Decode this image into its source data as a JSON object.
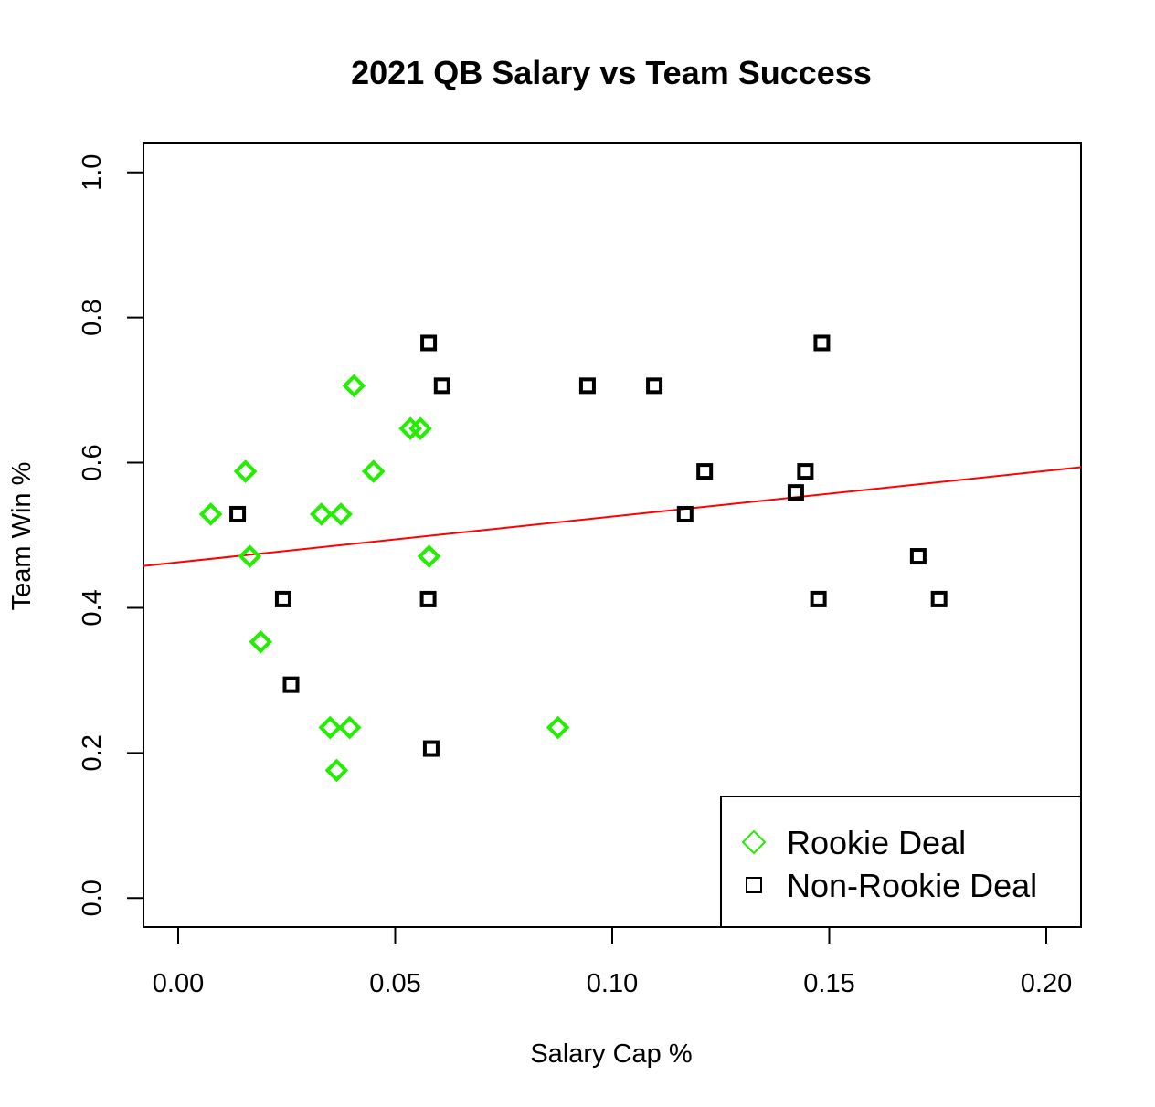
{
  "chart_data": {
    "type": "scatter",
    "title": "2021 QB Salary vs Team Success",
    "xlabel": "Salary Cap %",
    "ylabel": "Team Win %",
    "xlim": [
      -0.008,
      0.208
    ],
    "ylim": [
      -0.04,
      1.04
    ],
    "xticks": [
      0.0,
      0.05,
      0.1,
      0.15,
      0.2
    ],
    "xtick_labels": [
      "0.00",
      "0.05",
      "0.10",
      "0.15",
      "0.20"
    ],
    "yticks": [
      0.0,
      0.2,
      0.4,
      0.6,
      0.8,
      1.0
    ],
    "ytick_labels": [
      "0.0",
      "0.2",
      "0.4",
      "0.6",
      "0.8",
      "1.0"
    ],
    "grid": false,
    "legend_position": "bottom-right",
    "series": [
      {
        "name": "Rookie Deal",
        "color": "#22ee00",
        "marker": "diamond",
        "points": [
          [
            0.0075,
            0.529
          ],
          [
            0.0155,
            0.588
          ],
          [
            0.0165,
            0.471
          ],
          [
            0.019,
            0.353
          ],
          [
            0.033,
            0.529
          ],
          [
            0.0375,
            0.529
          ],
          [
            0.0405,
            0.706
          ],
          [
            0.045,
            0.588
          ],
          [
            0.0535,
            0.647
          ],
          [
            0.0558,
            0.647
          ],
          [
            0.0578,
            0.471
          ],
          [
            0.035,
            0.235
          ],
          [
            0.0395,
            0.235
          ],
          [
            0.0365,
            0.176
          ],
          [
            0.0875,
            0.235
          ]
        ]
      },
      {
        "name": "Non-Rookie Deal",
        "color": "#000000",
        "marker": "square",
        "points": [
          [
            0.0137,
            0.529
          ],
          [
            0.0242,
            0.412
          ],
          [
            0.026,
            0.294
          ],
          [
            0.0577,
            0.765
          ],
          [
            0.0608,
            0.706
          ],
          [
            0.0576,
            0.412
          ],
          [
            0.0583,
            0.206
          ],
          [
            0.0943,
            0.706
          ],
          [
            0.1097,
            0.706
          ],
          [
            0.1213,
            0.588
          ],
          [
            0.1168,
            0.529
          ],
          [
            0.1423,
            0.559
          ],
          [
            0.1445,
            0.588
          ],
          [
            0.1483,
            0.765
          ],
          [
            0.1475,
            0.412
          ],
          [
            0.1705,
            0.471
          ],
          [
            0.1753,
            0.412
          ]
        ]
      }
    ],
    "trendline": {
      "color": "#ff0000",
      "intercept": 0.4627,
      "slope": 0.63
    }
  }
}
